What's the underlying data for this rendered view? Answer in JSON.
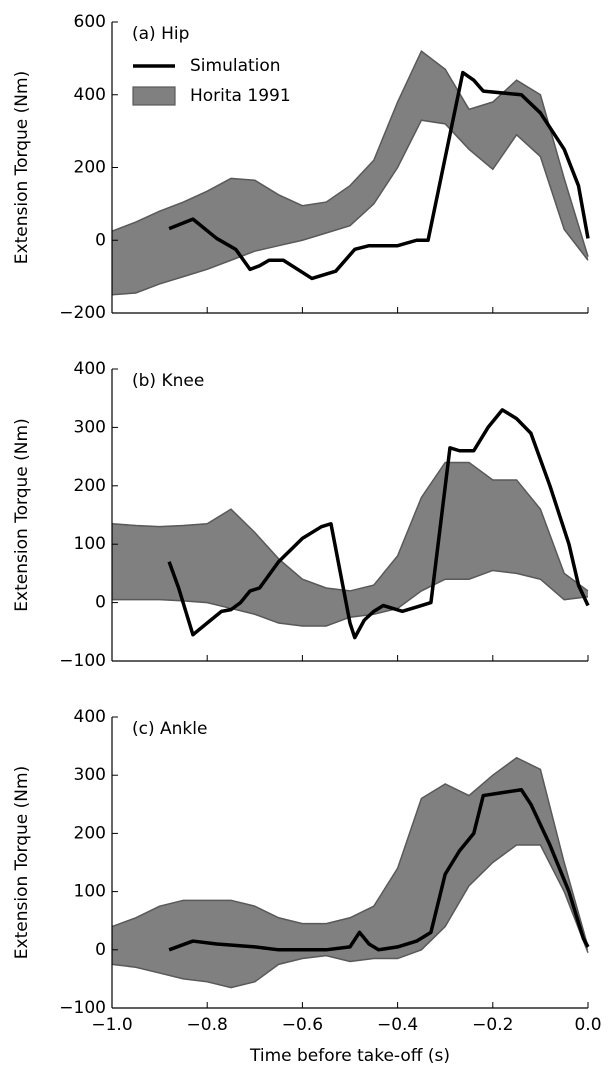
{
  "chart_data": [
    {
      "type": "line",
      "annotation": "(a) Hip",
      "ylabel": "Extension Torque (Nm)",
      "xlim": [
        -1.0,
        0.0
      ],
      "xticks": [
        -1.0,
        -0.8,
        -0.6,
        -0.4,
        -0.2,
        0.0
      ],
      "ylim": [
        -200,
        600
      ],
      "yticks": [
        {
          "value": -200,
          "label": "−200"
        },
        0,
        200,
        400,
        600
      ],
      "legend": "upper left",
      "series": [
        {
          "name": "Horita 1991",
          "style": "band",
          "color": "#808080",
          "edgecolor": "#595959",
          "x": [
            -1.0,
            -0.95,
            -0.9,
            -0.85,
            -0.8,
            -0.75,
            -0.7,
            -0.65,
            -0.6,
            -0.55,
            -0.5,
            -0.45,
            -0.4,
            -0.35,
            -0.3,
            -0.25,
            -0.2,
            -0.15,
            -0.1,
            -0.05,
            0.0
          ],
          "upper": [
            25,
            50,
            80,
            105,
            135,
            170,
            165,
            125,
            95,
            105,
            150,
            220,
            380,
            520,
            470,
            360,
            380,
            440,
            400,
            170,
            -45
          ],
          "lower": [
            -150,
            -145,
            -120,
            -100,
            -80,
            -55,
            -30,
            -15,
            0,
            20,
            40,
            100,
            200,
            330,
            320,
            250,
            195,
            290,
            230,
            30,
            -55
          ]
        },
        {
          "name": "Simulation",
          "style": "line",
          "color": "#000000",
          "x": [
            -0.88,
            -0.83,
            -0.78,
            -0.74,
            -0.71,
            -0.69,
            -0.67,
            -0.64,
            -0.58,
            -0.53,
            -0.49,
            -0.46,
            -0.4,
            -0.36,
            -0.336,
            -0.263,
            -0.24,
            -0.22,
            -0.14,
            -0.1,
            -0.05,
            -0.02,
            0.0
          ],
          "values": [
            32,
            58,
            5,
            -25,
            -80,
            -70,
            -55,
            -55,
            -105,
            -85,
            -25,
            -15,
            -15,
            0,
            0,
            461,
            440,
            410,
            400,
            350,
            250,
            150,
            5
          ]
        }
      ]
    },
    {
      "type": "line",
      "annotation": "(b) Knee",
      "ylabel": "Extension Torque (Nm)",
      "xlim": [
        -1.0,
        0.0
      ],
      "xticks": [
        -1.0,
        -0.8,
        -0.6,
        -0.4,
        -0.2,
        0.0
      ],
      "ylim": [
        -100,
        400
      ],
      "yticks": [
        {
          "value": -100,
          "label": "−100"
        },
        0,
        100,
        200,
        300,
        400
      ],
      "series": [
        {
          "style": "band",
          "color": "#808080",
          "edgecolor": "#595959",
          "x": [
            -1.0,
            -0.95,
            -0.9,
            -0.85,
            -0.8,
            -0.75,
            -0.7,
            -0.65,
            -0.6,
            -0.55,
            -0.5,
            -0.45,
            -0.4,
            -0.35,
            -0.3,
            -0.25,
            -0.2,
            -0.15,
            -0.1,
            -0.05,
            0.0
          ],
          "upper": [
            135,
            132,
            130,
            132,
            135,
            160,
            120,
            75,
            40,
            25,
            20,
            30,
            80,
            180,
            240,
            240,
            210,
            210,
            160,
            50,
            20
          ],
          "lower": [
            5,
            5,
            5,
            3,
            0,
            -10,
            -20,
            -35,
            -40,
            -40,
            -25,
            -20,
            -10,
            20,
            40,
            40,
            55,
            50,
            40,
            5,
            10
          ]
        },
        {
          "style": "line",
          "color": "#000000",
          "x": [
            -0.88,
            -0.86,
            -0.83,
            -0.8,
            -0.77,
            -0.75,
            -0.73,
            -0.71,
            -0.69,
            -0.65,
            -0.6,
            -0.56,
            -0.54,
            -0.5,
            -0.49,
            -0.47,
            -0.45,
            -0.43,
            -0.39,
            -0.35,
            -0.33,
            -0.29,
            -0.27,
            -0.24,
            -0.21,
            -0.18,
            -0.15,
            -0.12,
            -0.08,
            -0.04,
            -0.02,
            0.0
          ],
          "values": [
            70,
            25,
            -55,
            -35,
            -15,
            -12,
            0,
            20,
            25,
            70,
            110,
            130,
            135,
            -35,
            -60,
            -30,
            -15,
            -5,
            -15,
            -5,
            0,
            265,
            260,
            260,
            300,
            330,
            315,
            290,
            200,
            100,
            30,
            -5
          ]
        }
      ]
    },
    {
      "type": "line",
      "annotation": "(c) Ankle",
      "ylabel": "Extension Torque (Nm)",
      "xlabel": "Time before take-off (s)",
      "xlim": [
        -1.0,
        0.0
      ],
      "xticks": [
        {
          "value": -1.0,
          "label": "−1.0"
        },
        {
          "value": -0.8,
          "label": "−0.8"
        },
        {
          "value": -0.6,
          "label": "−0.6"
        },
        {
          "value": -0.4,
          "label": "−0.4"
        },
        {
          "value": -0.2,
          "label": "−0.2"
        },
        {
          "value": 0.0,
          "label": "0.0"
        }
      ],
      "ylim": [
        -100,
        400
      ],
      "yticks": [
        {
          "value": -100,
          "label": "−100"
        },
        0,
        100,
        200,
        300,
        400
      ],
      "series": [
        {
          "style": "band",
          "color": "#808080",
          "edgecolor": "#595959",
          "x": [
            -1.0,
            -0.95,
            -0.9,
            -0.85,
            -0.8,
            -0.75,
            -0.7,
            -0.65,
            -0.6,
            -0.55,
            -0.5,
            -0.45,
            -0.4,
            -0.35,
            -0.3,
            -0.25,
            -0.2,
            -0.15,
            -0.1,
            -0.05,
            0.0
          ],
          "upper": [
            40,
            55,
            75,
            85,
            85,
            85,
            75,
            55,
            45,
            45,
            55,
            75,
            140,
            260,
            285,
            265,
            300,
            330,
            310,
            150,
            5
          ],
          "lower": [
            -25,
            -30,
            -40,
            -50,
            -55,
            -65,
            -55,
            -25,
            -15,
            -10,
            -20,
            -15,
            -15,
            0,
            40,
            110,
            150,
            180,
            180,
            100,
            -5
          ]
        },
        {
          "style": "line",
          "color": "#000000",
          "x": [
            -0.88,
            -0.83,
            -0.78,
            -0.7,
            -0.65,
            -0.55,
            -0.5,
            -0.48,
            -0.46,
            -0.44,
            -0.4,
            -0.36,
            -0.33,
            -0.3,
            -0.27,
            -0.24,
            -0.22,
            -0.18,
            -0.14,
            -0.12,
            -0.08,
            -0.04,
            -0.01,
            0.0
          ],
          "values": [
            0,
            15,
            10,
            5,
            0,
            0,
            5,
            30,
            10,
            0,
            5,
            15,
            30,
            130,
            170,
            200,
            265,
            270,
            275,
            250,
            180,
            100,
            20,
            5
          ]
        }
      ]
    }
  ]
}
